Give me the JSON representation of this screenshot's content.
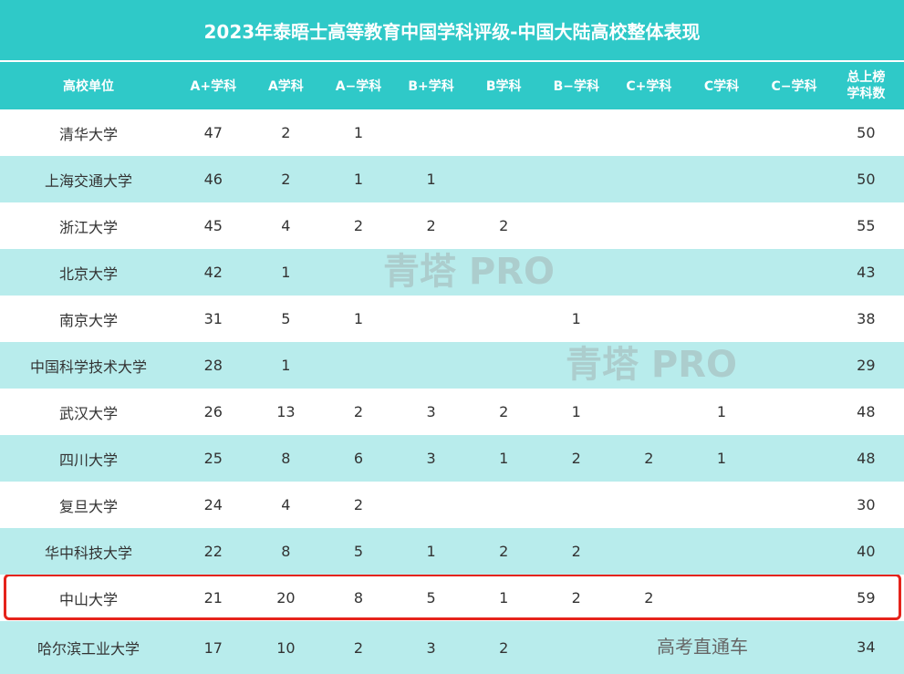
{
  "title": "2023年泰晤士高等教育中国学科评级-中国大陆高校整体表现",
  "headers": [
    "高校单位",
    "A+学科",
    "A学科",
    "A−学科",
    "B+学科",
    "B学科",
    "B−学科",
    "C+学科",
    "C学科",
    "C−学科",
    "总上榜\n学科数"
  ],
  "rows": [
    [
      "清华大学",
      "47",
      "2",
      "1",
      "",
      "",
      "",
      "",
      "",
      "",
      "50"
    ],
    [
      "上海交通大学",
      "46",
      "2",
      "1",
      "1",
      "",
      "",
      "",
      "",
      "",
      "50"
    ],
    [
      "浙江大学",
      "45",
      "4",
      "2",
      "2",
      "2",
      "",
      "",
      "",
      "",
      "55"
    ],
    [
      "北京大学",
      "42",
      "1",
      "",
      "",
      "",
      "",
      "",
      "",
      "",
      "43"
    ],
    [
      "南京大学",
      "31",
      "5",
      "1",
      "",
      "",
      "1",
      "",
      "",
      "",
      "38"
    ],
    [
      "中国科学技术大学",
      "28",
      "1",
      "",
      "",
      "",
      "",
      "",
      "",
      "",
      "29"
    ],
    [
      "武汉大学",
      "26",
      "13",
      "2",
      "3",
      "2",
      "1",
      "",
      "1",
      "",
      "48"
    ],
    [
      "四川大学",
      "25",
      "8",
      "6",
      "3",
      "1",
      "2",
      "2",
      "1",
      "",
      "48"
    ],
    [
      "复旦大学",
      "24",
      "4",
      "2",
      "",
      "",
      "",
      "",
      "",
      "",
      "30"
    ],
    [
      "华中科技大学",
      "22",
      "8",
      "5",
      "1",
      "2",
      "2",
      "",
      "",
      "",
      "40"
    ],
    [
      "中山大学",
      "21",
      "20",
      "8",
      "5",
      "1",
      "2",
      "2",
      "",
      "",
      "59"
    ],
    [
      "哈尔滨工业大学",
      "17",
      "10",
      "2",
      "3",
      "2",
      "",
      "",
      "",
      "",
      "34"
    ]
  ],
  "highlighted_row": "中山大学",
  "watermarks": [
    "青塔 PRO",
    "青塔 PRO"
  ],
  "source_watermark": "高考直通车",
  "colors": {
    "header": "#2fc9c8",
    "alt_row": "#b8ecec",
    "highlight_border": "#e5231b"
  }
}
